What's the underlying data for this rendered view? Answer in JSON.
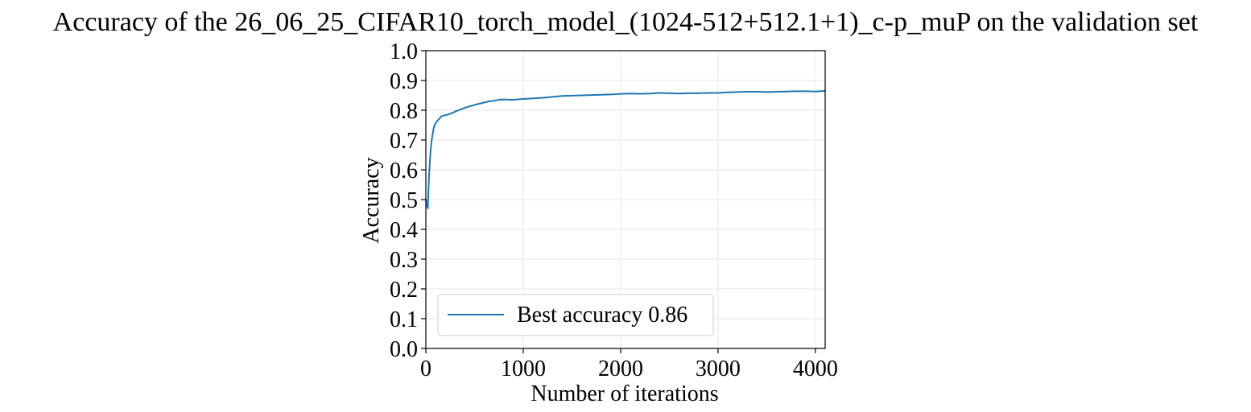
{
  "chart_data": {
    "type": "line",
    "title": "Accuracy of the 26_06_25_CIFAR10_torch_model_(1024-512+512.1+1)_c-p_muP on the validation set",
    "xlabel": "Number of iterations",
    "ylabel": "Accuracy",
    "xlim": [
      0,
      4100
    ],
    "ylim": [
      0.0,
      1.0
    ],
    "xticks": [
      0,
      1000,
      2000,
      3000,
      4000
    ],
    "xtick_labels": [
      "0",
      "1000",
      "2000",
      "3000",
      "4000"
    ],
    "yticks": [
      0.0,
      0.1,
      0.2,
      0.3,
      0.4,
      0.5,
      0.6,
      0.7,
      0.8,
      0.9,
      1.0
    ],
    "ytick_labels": [
      "0.0",
      "0.1",
      "0.2",
      "0.3",
      "0.4",
      "0.5",
      "0.6",
      "0.7",
      "0.8",
      "0.9",
      "1.0"
    ],
    "grid": true,
    "legend_position": "lower-left",
    "series": [
      {
        "name": "Best accuracy 0.86",
        "color": "#1f77b4",
        "x": [
          0,
          10,
          20,
          30,
          40,
          50,
          60,
          70,
          80,
          90,
          100,
          120,
          140,
          160,
          180,
          200,
          250,
          300,
          350,
          400,
          450,
          500,
          550,
          600,
          650,
          700,
          750,
          800,
          900,
          1000,
          1100,
          1200,
          1300,
          1400,
          1500,
          1600,
          1700,
          1800,
          1900,
          2000,
          2100,
          2200,
          2300,
          2400,
          2500,
          2600,
          2700,
          2800,
          2900,
          3000,
          3100,
          3200,
          3300,
          3400,
          3500,
          3600,
          3700,
          3800,
          3900,
          4000,
          4100
        ],
        "y": [
          0.5,
          0.48,
          0.47,
          0.56,
          0.62,
          0.67,
          0.7,
          0.72,
          0.74,
          0.75,
          0.757,
          0.765,
          0.772,
          0.78,
          0.782,
          0.783,
          0.788,
          0.795,
          0.802,
          0.808,
          0.813,
          0.818,
          0.822,
          0.826,
          0.83,
          0.832,
          0.835,
          0.836,
          0.835,
          0.838,
          0.84,
          0.842,
          0.845,
          0.848,
          0.849,
          0.85,
          0.851,
          0.852,
          0.853,
          0.855,
          0.856,
          0.855,
          0.856,
          0.858,
          0.857,
          0.856,
          0.857,
          0.857,
          0.858,
          0.858,
          0.86,
          0.861,
          0.862,
          0.862,
          0.861,
          0.862,
          0.863,
          0.864,
          0.864,
          0.863,
          0.865
        ]
      }
    ]
  }
}
